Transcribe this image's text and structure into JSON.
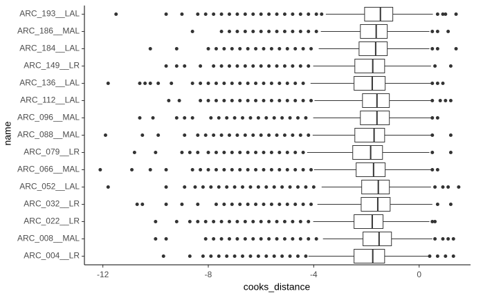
{
  "chart_data": {
    "type": "boxplot",
    "x_label": "cooks_distance",
    "y_label": "name",
    "categories": [
      "ARC_193__LAL",
      "ARC_186__MAL",
      "ARC_184__LAL",
      "ARC_149__LR",
      "ARC_136__LAL",
      "ARC_112__LAL",
      "ARC_096__MAL",
      "ARC_088__MAL",
      "ARC_079__LR",
      "ARC_066__MAL",
      "ARC_052__LAL",
      "ARC_032__LR",
      "ARC_022__LR",
      "ARC_008__MAL",
      "ARC_004__LR"
    ],
    "xlim": [
      -12.7,
      1.95
    ],
    "xticks": [
      -12,
      -8,
      -4,
      0
    ],
    "box_color": "#333333",
    "point_color": "#333333",
    "boxes": [
      {
        "low": -3.54,
        "q1": -2.07,
        "median": -1.47,
        "q3": -1.0,
        "high": 0.52,
        "outliers": [
          -11.5,
          -9.6,
          -9.0,
          -8.4,
          -8.1,
          -7.8,
          -7.5,
          -7.2,
          -6.9,
          -6.6,
          -6.3,
          -6.0,
          -5.7,
          -5.4,
          -5.1,
          -4.8,
          -4.5,
          -4.2,
          -3.9,
          -3.7,
          0.7,
          0.9,
          1.0,
          1.4
        ]
      },
      {
        "low": -3.73,
        "q1": -2.23,
        "median": -1.63,
        "q3": -1.21,
        "high": 0.39,
        "outliers": [
          -8.6,
          -7.5,
          -7.2,
          -6.9,
          -6.6,
          -6.3,
          -6.0,
          -5.7,
          -5.4,
          -5.1,
          -4.8,
          -4.5,
          -4.2,
          -3.9,
          0.5,
          0.7,
          1.1
        ]
      },
      {
        "low": -3.81,
        "q1": -2.28,
        "median": -1.65,
        "q3": -1.21,
        "high": 0.39,
        "outliers": [
          -10.2,
          -9.2,
          -8.0,
          -7.7,
          -7.4,
          -7.1,
          -6.8,
          -6.5,
          -6.2,
          -5.9,
          -5.6,
          -5.3,
          -5.0,
          -4.7,
          -4.4,
          -4.1,
          0.5,
          0.7,
          1.4
        ]
      },
      {
        "low": -4.02,
        "q1": -2.44,
        "median": -1.76,
        "q3": -1.31,
        "high": 0.45,
        "outliers": [
          -9.6,
          -9.2,
          -8.9,
          -8.3,
          -7.8,
          -7.5,
          -7.2,
          -6.9,
          -6.6,
          -6.3,
          -6.0,
          -5.7,
          -5.4,
          -5.1,
          -4.8,
          -4.5,
          -4.2,
          0.6,
          1.2
        ]
      },
      {
        "low": -4.12,
        "q1": -2.47,
        "median": -1.78,
        "q3": -1.29,
        "high": 0.45,
        "outliers": [
          -11.8,
          -10.6,
          -10.4,
          -10.2,
          -9.9,
          -9.4,
          -8.6,
          -8.3,
          -8.0,
          -7.7,
          -7.4,
          -7.1,
          -6.8,
          -6.5,
          -6.2,
          -5.9,
          -5.6,
          -5.3,
          -5.0,
          -4.7,
          -4.4,
          0.5,
          0.7,
          0.9
        ]
      },
      {
        "low": -3.97,
        "q1": -2.15,
        "median": -1.6,
        "q3": -1.13,
        "high": 0.45,
        "outliers": [
          -9.5,
          -9.1,
          -8.3,
          -8.0,
          -7.7,
          -7.4,
          -7.1,
          -6.8,
          -6.5,
          -6.2,
          -5.9,
          -5.6,
          -5.3,
          -5.0,
          -4.7,
          -4.4,
          -4.1,
          0.5,
          0.8,
          1.0,
          1.2
        ]
      },
      {
        "low": -4.02,
        "q1": -2.23,
        "median": -1.6,
        "q3": -1.13,
        "high": 0.45,
        "outliers": [
          -10.6,
          -10.1,
          -9.2,
          -8.9,
          -8.6,
          -7.9,
          -7.6,
          -7.3,
          -7.0,
          -6.7,
          -6.4,
          -6.1,
          -5.8,
          -5.5,
          -5.2,
          -4.9,
          -4.6,
          -4.3,
          0.5,
          0.7
        ]
      },
      {
        "low": -4.04,
        "q1": -2.44,
        "median": -1.71,
        "q3": -1.31,
        "high": 0.45,
        "outliers": [
          -11.9,
          -10.5,
          -9.9,
          -8.9,
          -8.4,
          -8.1,
          -7.8,
          -7.5,
          -7.2,
          -6.9,
          -6.6,
          -6.3,
          -6.0,
          -5.7,
          -5.4,
          -5.1,
          -4.8,
          -4.5,
          -4.2,
          0.5,
          1.2
        ]
      },
      {
        "low": -4.25,
        "q1": -2.52,
        "median": -1.84,
        "q3": -1.39,
        "high": 0.39,
        "outliers": [
          -10.8,
          -10.0,
          -9.0,
          -8.7,
          -8.4,
          -8.0,
          -7.7,
          -7.4,
          -7.1,
          -6.8,
          -6.5,
          -6.2,
          -5.9,
          -5.6,
          -5.3,
          -5.0,
          -4.7,
          -4.4,
          0.5,
          1.2
        ]
      },
      {
        "low": -3.99,
        "q1": -2.39,
        "median": -1.73,
        "q3": -1.29,
        "high": 0.45,
        "outliers": [
          -12.1,
          -10.9,
          -10.2,
          -9.6,
          -8.6,
          -8.3,
          -8.0,
          -7.7,
          -7.4,
          -7.1,
          -6.8,
          -6.5,
          -6.2,
          -5.9,
          -5.6,
          -5.3,
          -5.0,
          -4.7,
          -4.4,
          -4.1,
          0.5,
          0.7
        ]
      },
      {
        "low": -3.7,
        "q1": -2.18,
        "median": -1.55,
        "q3": -1.13,
        "high": 0.45,
        "outliers": [
          -11.8,
          -9.6,
          -8.9,
          -8.5,
          -8.2,
          -7.9,
          -7.6,
          -7.3,
          -7.0,
          -6.7,
          -6.4,
          -6.1,
          -5.8,
          -5.5,
          -5.2,
          -4.9,
          -4.6,
          -4.3,
          -4.0,
          0.6,
          0.9,
          1.1,
          1.5
        ]
      },
      {
        "low": -3.86,
        "q1": -2.2,
        "median": -1.57,
        "q3": -1.1,
        "high": 0.5,
        "outliers": [
          -10.7,
          -10.5,
          -9.6,
          -9.0,
          -8.4,
          -7.7,
          -7.4,
          -7.1,
          -6.8,
          -6.5,
          -6.2,
          -5.9,
          -5.6,
          -5.3,
          -5.0,
          -4.7,
          -4.4,
          -4.1,
          0.7,
          1.2
        ]
      },
      {
        "low": -4.02,
        "q1": -2.47,
        "median": -1.78,
        "q3": -1.37,
        "high": 0.39,
        "outliers": [
          -10.0,
          -9.2,
          -8.7,
          -8.4,
          -8.1,
          -7.8,
          -7.5,
          -7.2,
          -6.9,
          -6.6,
          -6.3,
          -6.0,
          -5.7,
          -5.4,
          -5.1,
          -4.8,
          -4.5,
          -4.2,
          0.5,
          0.6
        ]
      },
      {
        "low": -3.65,
        "q1": -2.13,
        "median": -1.52,
        "q3": -1.05,
        "high": 0.5,
        "outliers": [
          -10.0,
          -9.6,
          -8.1,
          -7.8,
          -7.5,
          -7.2,
          -6.9,
          -6.6,
          -6.3,
          -6.0,
          -5.7,
          -5.4,
          -5.1,
          -4.8,
          -4.5,
          -4.2,
          -3.9,
          0.6,
          0.9,
          1.1,
          1.3
        ]
      },
      {
        "low": -4.2,
        "q1": -2.47,
        "median": -1.76,
        "q3": -1.31,
        "high": 0.39,
        "outliers": [
          -9.7,
          -8.7,
          -8.2,
          -7.9,
          -7.6,
          -7.3,
          -7.0,
          -6.7,
          -6.4,
          -6.1,
          -5.8,
          -5.5,
          -5.2,
          -4.9,
          -4.6,
          -4.3,
          0.4,
          0.7,
          1.0,
          1.3
        ]
      }
    ]
  }
}
